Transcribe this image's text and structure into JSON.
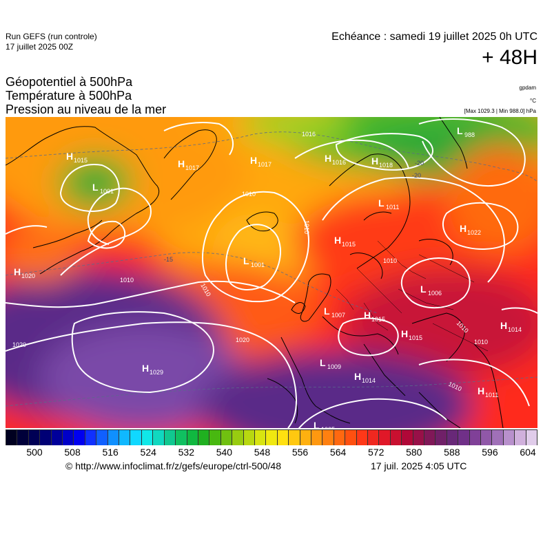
{
  "header": {
    "run_title": "Run GEFS (run controle)",
    "run_date": "17 juillet 2025 00Z",
    "echeance": "Echéance : samedi 19 juillet 2025 0h UTC",
    "horizon": "+ 48H",
    "param_lines": [
      "Géopotentiel à 500hPa",
      "Température à 500hPa",
      "Pression au niveau de la mer"
    ],
    "units": [
      "gpdam",
      "°C",
      "[Max 1029.3 | Min 988.0] hPa"
    ]
  },
  "colorbar": {
    "tick_labels": [
      "500",
      "508",
      "516",
      "524",
      "532",
      "540",
      "548",
      "556",
      "564",
      "572",
      "580",
      "588",
      "596",
      "604"
    ],
    "colors": [
      "#000020",
      "#00003a",
      "#000055",
      "#000075",
      "#00009a",
      "#0000c8",
      "#0000f0",
      "#1030ff",
      "#1060ff",
      "#1090ff",
      "#10b8ff",
      "#10d8ff",
      "#10e8e8",
      "#10d8c0",
      "#10c890",
      "#10c060",
      "#10b840",
      "#20b020",
      "#48b810",
      "#70c010",
      "#98cc10",
      "#b8d810",
      "#d8e410",
      "#f0e810",
      "#ffe010",
      "#ffc810",
      "#ffb010",
      "#ff9810",
      "#ff8010",
      "#ff6810",
      "#ff5010",
      "#ff3818",
      "#f02820",
      "#e01828",
      "#c81030",
      "#b00838",
      "#981048",
      "#801858",
      "#702068",
      "#682878",
      "#703088",
      "#804098",
      "#9058a8",
      "#a070b8",
      "#b890cc",
      "#d0b0dc",
      "#e0ccea"
    ]
  },
  "pressure_systems": [
    {
      "type": "H",
      "value": "1015",
      "name": "H"
    },
    {
      "type": "L",
      "value": "1001",
      "name": "L"
    },
    {
      "type": "H",
      "value": "1017",
      "name": "H"
    },
    {
      "type": "H",
      "value": "1017",
      "name": "H"
    },
    {
      "type": "H",
      "value": "1016",
      "name": "H"
    },
    {
      "type": "H",
      "value": "1018",
      "name": "H"
    },
    {
      "type": "L",
      "value": "988",
      "name": "L"
    },
    {
      "type": "L",
      "value": "988",
      "name": "L"
    },
    {
      "type": "L",
      "value": "1011",
      "name": "L"
    },
    {
      "type": "H",
      "value": "1022",
      "name": "H"
    },
    {
      "type": "H",
      "value": "1015",
      "name": "H"
    },
    {
      "type": "L",
      "value": "1001",
      "name": "L"
    },
    {
      "type": "H",
      "value": "1020",
      "name": "H"
    },
    {
      "type": "L",
      "value": "1006",
      "name": "L"
    },
    {
      "type": "L",
      "value": "1007",
      "name": "L"
    },
    {
      "type": "H",
      "value": "1015",
      "name": "H"
    },
    {
      "type": "H",
      "value": "1015",
      "name": "H"
    },
    {
      "type": "H",
      "value": "1014",
      "name": "H"
    },
    {
      "type": "H",
      "value": "1029",
      "name": "H"
    },
    {
      "type": "L",
      "value": "1009",
      "name": "L"
    },
    {
      "type": "H",
      "value": "1014",
      "name": "H"
    },
    {
      "type": "H",
      "value": "1011",
      "name": "H"
    },
    {
      "type": "L",
      "value": "1005",
      "name": "L"
    }
  ],
  "isobar_labels": [
    "1010",
    "1010",
    "1010",
    "1010",
    "1010",
    "1010",
    "1010",
    "1020",
    "1020",
    "1016",
    "1010"
  ],
  "isotherm_labels": [
    "-20",
    "-20",
    "-15"
  ],
  "footer": {
    "source": "© http://www.infoclimat.fr/z/gefs/europe/ctrl-500/48",
    "issued": "17 juil. 2025  4:05 UTC"
  }
}
